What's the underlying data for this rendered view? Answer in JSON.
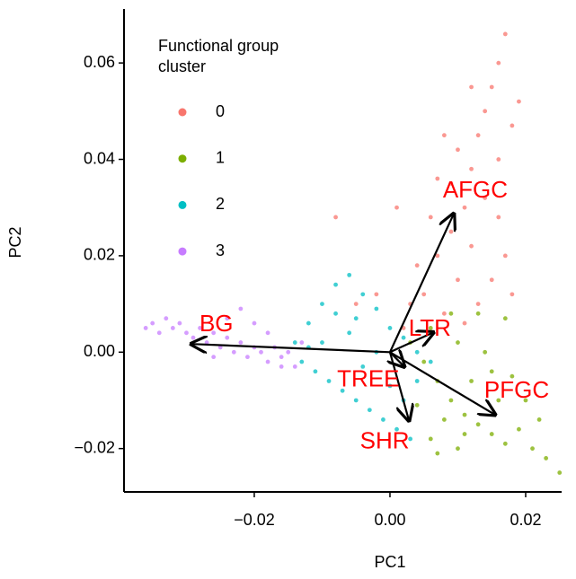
{
  "chart_data": {
    "type": "scatter",
    "xlabel": "PC1",
    "ylabel": "PC2",
    "xlim": [
      -0.0392,
      0.0253
    ],
    "ylim": [
      -0.029,
      0.0712
    ],
    "xticks": [
      {
        "value": -0.02,
        "label": "−0.02"
      },
      {
        "value": 0,
        "label": "0.00"
      },
      0.02
    ],
    "yticks": [
      {
        "value": -0.02,
        "label": "−0.02"
      },
      {
        "value": 0,
        "label": "0.00"
      },
      0.02,
      0.04,
      0.06
    ],
    "legend_title": [
      "Functional group",
      "cluster"
    ],
    "legend": "top-left",
    "series": [
      {
        "name": "0",
        "color": "#F8766D",
        "x": [
          0.005,
          0.007,
          0.009,
          0.011,
          0.012,
          0.013,
          0.014,
          0.015,
          0.016,
          0.017,
          0.01,
          0.008,
          0.006,
          0.004,
          0.003,
          0.012,
          0.014,
          0.016,
          0.018,
          0.019,
          0.013,
          0.015,
          0.017,
          0.011,
          0.009,
          0.007,
          0.002,
          -0.002,
          -0.005,
          -0.008,
          0.001,
          0.018,
          0.016,
          0.01,
          0.012,
          0.008
        ],
        "y": [
          0.012,
          0.02,
          0.025,
          0.03,
          0.038,
          0.045,
          0.05,
          0.055,
          0.06,
          0.066,
          0.015,
          0.008,
          0.028,
          0.018,
          0.01,
          0.022,
          0.032,
          0.04,
          0.047,
          0.052,
          0.01,
          0.015,
          0.02,
          0.006,
          0.035,
          0.036,
          0.005,
          0.012,
          0.01,
          0.028,
          0.03,
          0.012,
          0.028,
          0.042,
          0.055,
          0.045
        ]
      },
      {
        "name": "1",
        "color": "#7CAE00",
        "x": [
          0.003,
          0.005,
          0.007,
          0.009,
          0.011,
          0.013,
          0.015,
          0.017,
          0.019,
          0.021,
          0.023,
          0.025,
          0.006,
          0.01,
          0.014,
          0.018,
          0.016,
          0.012,
          0.008,
          0.006,
          0.01,
          0.004,
          0.017,
          0.013,
          0.02,
          0.022,
          0.009,
          0.015,
          0.011,
          0.007
        ],
        "y": [
          0.002,
          -0.002,
          -0.006,
          -0.01,
          -0.013,
          -0.015,
          -0.017,
          -0.019,
          -0.016,
          -0.02,
          -0.022,
          -0.025,
          0.005,
          0.002,
          0.0,
          -0.005,
          -0.01,
          -0.006,
          -0.014,
          -0.018,
          -0.02,
          -0.011,
          0.007,
          0.008,
          -0.01,
          -0.014,
          0.008,
          -0.004,
          -0.017,
          -0.021
        ]
      },
      {
        "name": "2",
        "color": "#00BFC4",
        "x": [
          -0.014,
          -0.012,
          -0.01,
          -0.008,
          -0.006,
          -0.004,
          -0.002,
          0.0,
          0.002,
          0.004,
          0.006,
          -0.013,
          -0.011,
          -0.009,
          -0.007,
          -0.005,
          -0.003,
          -0.001,
          0.001,
          0.003,
          -0.01,
          -0.006,
          -0.004,
          -0.002,
          0.0,
          0.002,
          -0.008,
          -0.005,
          0.004,
          -0.012
        ],
        "y": [
          0.002,
          0.006,
          0.01,
          0.014,
          0.016,
          0.012,
          0.009,
          0.005,
          0.003,
          0.0,
          -0.002,
          -0.002,
          -0.004,
          -0.006,
          -0.008,
          -0.01,
          -0.012,
          -0.014,
          -0.016,
          -0.018,
          0.002,
          0.004,
          -0.003,
          0.0,
          -0.007,
          -0.01,
          0.008,
          0.007,
          -0.006,
          0.001
        ]
      },
      {
        "name": "3",
        "color": "#C77CFF",
        "x": [
          -0.036,
          -0.035,
          -0.034,
          -0.033,
          -0.032,
          -0.031,
          -0.03,
          -0.029,
          -0.028,
          -0.027,
          -0.026,
          -0.025,
          -0.024,
          -0.023,
          -0.022,
          -0.021,
          -0.02,
          -0.019,
          -0.018,
          -0.017,
          -0.016,
          -0.015,
          -0.014,
          -0.013,
          -0.024,
          -0.02,
          -0.022,
          -0.018,
          -0.026,
          -0.016
        ],
        "y": [
          0.005,
          0.006,
          0.004,
          0.007,
          0.005,
          0.006,
          0.004,
          0.003,
          0.005,
          0.002,
          0.004,
          0.001,
          0.003,
          0.0,
          0.002,
          -0.001,
          0.001,
          0.0,
          -0.002,
          0.001,
          -0.001,
          0.0,
          -0.003,
          0.002,
          0.007,
          0.006,
          0.009,
          0.004,
          -0.001,
          -0.003
        ]
      }
    ],
    "loadings": [
      {
        "label": "AFGC",
        "x": 0.0094,
        "y": 0.0287
      },
      {
        "label": "BG",
        "x": -0.0293,
        "y": 0.0017
      },
      {
        "label": "LTR",
        "x": 0.0064,
        "y": 0.0041
      },
      {
        "label": "TREE",
        "x": 0.0021,
        "y": -0.003
      },
      {
        "label": "SHR",
        "x": 0.0028,
        "y": -0.0142
      },
      {
        "label": "PFGC",
        "x": 0.0155,
        "y": -0.013
      }
    ]
  }
}
